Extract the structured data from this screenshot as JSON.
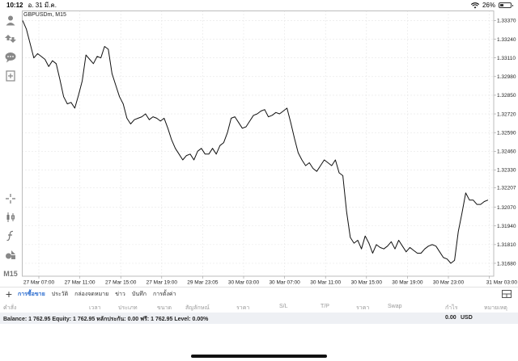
{
  "status_bar": {
    "time": "10:12",
    "date": "อ. 31 มี.ค.",
    "battery": "26%"
  },
  "toolbar": {
    "tools": [
      "account-icon",
      "trade-icon",
      "chat-icon",
      "new-order-icon",
      "crosshair-icon",
      "candlestick-icon",
      "indicator-icon",
      "objects-icon"
    ],
    "timeframe": "M15"
  },
  "chart": {
    "symbol": "GBPUSDm, M15",
    "current_price": "1.32107",
    "line_color": "#111111",
    "price_tag_color": "#1f5fa8"
  },
  "chart_data": {
    "type": "line",
    "symbol": "GBPUSDm",
    "timeframe": "M15",
    "ylim": [
      1.3159,
      1.3344
    ],
    "y_ticks": [
      "1.33370",
      "1.33240",
      "1.33110",
      "1.32980",
      "1.32850",
      "1.32720",
      "1.32590",
      "1.32460",
      "1.32330",
      "1.32207",
      "1.32070",
      "1.31940",
      "1.31810",
      "1.31680"
    ],
    "x_ticks": [
      "27 Mar 07:00",
      "27 Mar 11:00",
      "27 Mar 15:00",
      "27 Mar 19:00",
      "29 Mar 23:05",
      "30 Mar 03:00",
      "30 Mar 07:00",
      "30 Mar 11:00",
      "30 Mar 15:00",
      "30 Mar 19:00",
      "30 Mar 23:00",
      "31 Mar 03:00"
    ],
    "grid": true,
    "series": [
      {
        "values": [
          1.3337,
          1.3331,
          1.3321,
          1.3311,
          1.3314,
          1.3312,
          1.331,
          1.3305,
          1.3309,
          1.3307,
          1.3296,
          1.3284,
          1.3279,
          1.328,
          1.3276,
          1.3285,
          1.3295,
          1.3313,
          1.331,
          1.3307,
          1.3312,
          1.3311,
          1.3319,
          1.3317,
          1.33,
          1.3292,
          1.3284,
          1.3279,
          1.3269,
          1.3265,
          1.3268,
          1.3269,
          1.327,
          1.3272,
          1.3268,
          1.327,
          1.3269,
          1.3267,
          1.3269,
          1.3262,
          1.3254,
          1.3248,
          1.3244,
          1.324,
          1.3243,
          1.3244,
          1.324,
          1.3246,
          1.3248,
          1.3244,
          1.3244,
          1.3248,
          1.3244,
          1.325,
          1.3252,
          1.3259,
          1.3269,
          1.327,
          1.3266,
          1.3262,
          1.3263,
          1.3267,
          1.3271,
          1.3272,
          1.3274,
          1.3275,
          1.327,
          1.3271,
          1.3273,
          1.3272,
          1.3274,
          1.3276,
          1.3266,
          1.3255,
          1.3245,
          1.324,
          1.3236,
          1.3238,
          1.3234,
          1.3232,
          1.3236,
          1.324,
          1.3238,
          1.3236,
          1.324,
          1.3231,
          1.3229,
          1.3204,
          1.3186,
          1.3182,
          1.3184,
          1.3178,
          1.3187,
          1.3182,
          1.3175,
          1.3181,
          1.3179,
          1.3178,
          1.318,
          1.3183,
          1.3178,
          1.3184,
          1.318,
          1.3176,
          1.3179,
          1.3177,
          1.3175,
          1.3175,
          1.3178,
          1.318,
          1.3181,
          1.318,
          1.3176,
          1.3172,
          1.3171,
          1.3168,
          1.317,
          1.319,
          1.3203,
          1.3217,
          1.3212,
          1.3212,
          1.3209,
          1.3209,
          1.3211,
          1.3212
        ]
      }
    ]
  },
  "bottom": {
    "tabs": [
      "การซื้อขาย",
      "ประวัติ",
      "กล่องจดหมาย",
      "ข่าว",
      "บันทึก",
      "การตั้งค่า"
    ],
    "active_tab": 0,
    "columns": [
      "คำสั่ง",
      "เวลา",
      "ประเภท",
      "ขนาด",
      "สัญลักษณ์",
      "ราคา",
      "S/L",
      "T/P",
      "ราคา",
      "Swap",
      "กำไร",
      "หมายเหตุ"
    ],
    "balance_line": "Balance: 1 762.95 Equity: 1 762.95 หลักประกัน: 0.00 ฟรี: 1 762.95 Level: 0.00%",
    "profit_total": "0.00",
    "currency": "USD"
  }
}
